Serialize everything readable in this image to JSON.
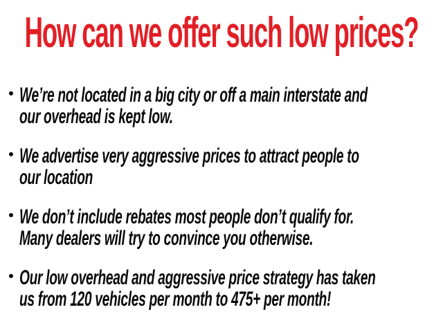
{
  "slide": {
    "title": "How can we offer such low prices?",
    "bullets": [
      "We’re not located in a big city or off a main interstate and\nour overhead is kept low.",
      "We advertise very aggressive prices to attract people to\nour location",
      "We don’t include rebates most people don’t qualify for.\nMany dealers will try to convince you otherwise.",
      "Our low overhead and aggressive price strategy has taken\nus from 120 vehicles per month to 475+ per month!"
    ],
    "colors": {
      "accent_red": "#e21f26",
      "text_black": "#0a0a0a",
      "background": "#ffffff"
    }
  }
}
